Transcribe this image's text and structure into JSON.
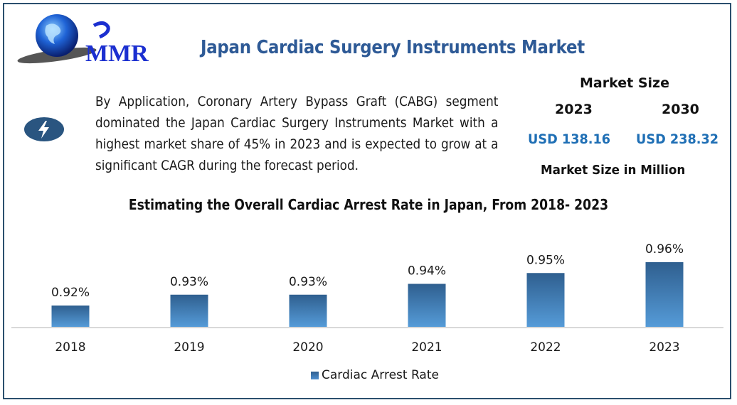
{
  "header": {
    "logo_text": "MMR",
    "title": "Japan Cardiac Surgery Instruments Market"
  },
  "summary": {
    "icon": "lightning-bolt-icon",
    "text": "By Application, Coronary Artery Bypass Graft (CABG) segment dominated the Japan Cardiac Surgery Instruments Market with a highest market share of 45% in 2023 and is expected to grow at a significant CAGR during the forecast period."
  },
  "market_size": {
    "title": "Market Size",
    "years": [
      "2023",
      "2030"
    ],
    "values": [
      "USD 138.16",
      "USD 238.32"
    ],
    "unit_label": "Market Size in Million"
  },
  "colors": {
    "title_blue": "#2e5a96",
    "value_blue": "#1f6fb5",
    "bar_top": "#2f5f8f",
    "bar_bottom": "#559bd8",
    "frame": "#2b4f6e"
  },
  "chart_data": {
    "type": "bar",
    "title": "Estimating the Overall Cardiac Arrest Rate in Japan, From 2018- 2023",
    "categories": [
      "2018",
      "2019",
      "2020",
      "2021",
      "2022",
      "2023"
    ],
    "series": [
      {
        "name": "Cardiac Arrest Rate",
        "values": [
          0.92,
          0.93,
          0.93,
          0.94,
          0.95,
          0.96
        ]
      }
    ],
    "data_labels": [
      "0.92%",
      "0.93%",
      "0.93%",
      "0.94%",
      "0.95%",
      "0.96%"
    ],
    "xlabel": "",
    "ylabel": "",
    "unit": "%",
    "ylim": [
      0.9,
      0.98
    ],
    "grid": false,
    "legend_position": "bottom"
  }
}
